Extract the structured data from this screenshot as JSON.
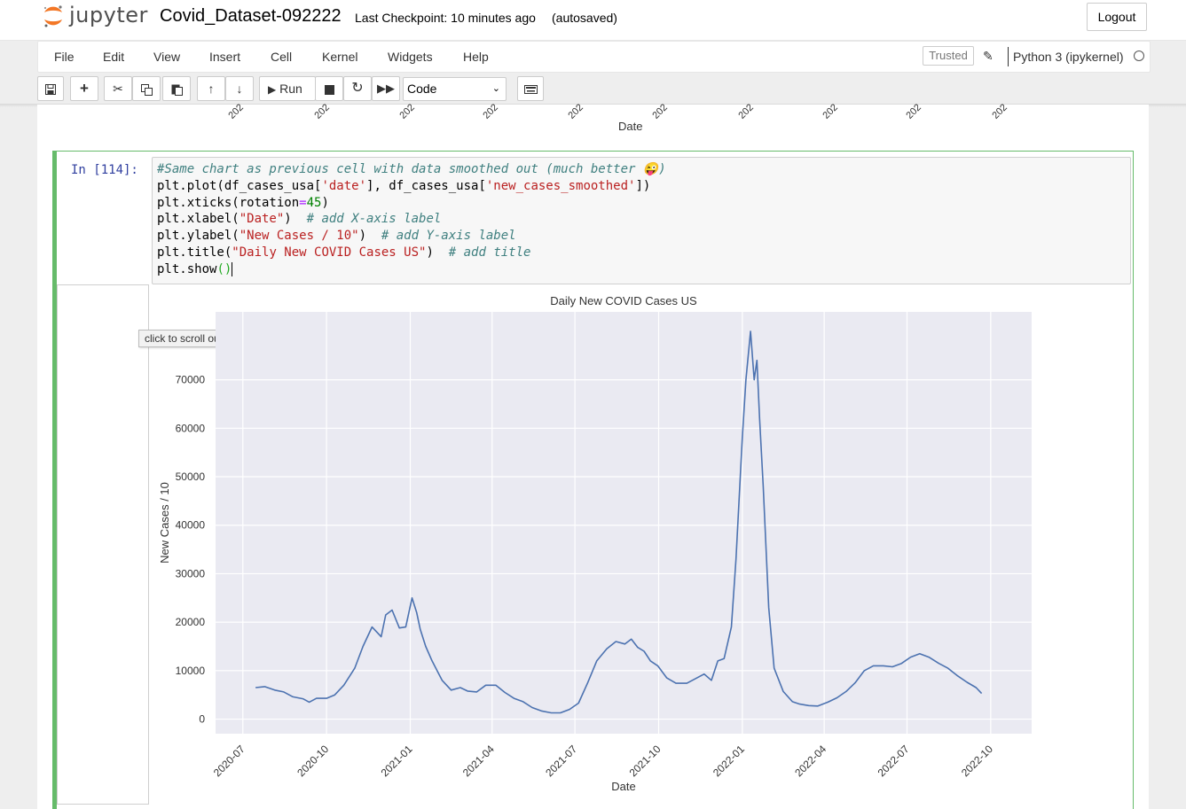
{
  "header": {
    "logo_text": "jupyter",
    "notebook_name": "Covid_Dataset-092222",
    "checkpoint": "Last Checkpoint: 10 minutes ago",
    "autosave": "(autosaved)",
    "logout_label": "Logout"
  },
  "menu": {
    "items": [
      "File",
      "Edit",
      "View",
      "Insert",
      "Cell",
      "Kernel",
      "Widgets",
      "Help"
    ],
    "trusted_label": "Trusted",
    "kernel_name": "Python 3 (ipykernel)"
  },
  "toolbar": {
    "run_label": "Run",
    "cell_type": "Code"
  },
  "previous_output": {
    "tick_label": "202",
    "xlabel": "Date"
  },
  "cell": {
    "prompt": "In [114]:",
    "code_lines": [
      "#Same chart as previous cell with data smoothed out (much better 😜)",
      "plt.plot(df_cases_usa['date'], df_cases_usa['new_cases_smoothed'])",
      "plt.xticks(rotation=45)",
      "plt.xlabel(\"Date\")  # add X-axis label",
      "plt.ylabel(\"New Cases / 10\")  # add Y-axis label",
      "plt.title(\"Daily New COVID Cases US\")  # add title",
      "plt.show()"
    ]
  },
  "tooltip": "click to scroll output; double click to hide",
  "chart_data": {
    "type": "line",
    "title": "Daily New COVID Cases US",
    "xlabel": "Date",
    "ylabel": "New Cases / 10",
    "ylim": [
      -3000,
      84000
    ],
    "xlim": [
      "2020-06-01",
      "2022-11-15"
    ],
    "y_ticks": [
      0,
      10000,
      20000,
      30000,
      40000,
      50000,
      60000,
      70000
    ],
    "y_tick_labels": [
      "0",
      "10000",
      "20000",
      "30000",
      "40000",
      "50000",
      "60000",
      "70000"
    ],
    "x_ticks": [
      "2020-07",
      "2020-10",
      "2021-01",
      "2021-04",
      "2021-07",
      "2021-10",
      "2022-01",
      "2022-04",
      "2022-07",
      "2022-10"
    ],
    "grid": true,
    "background": "#eaeaf2",
    "line_color": "#4c72b0",
    "series": [
      {
        "x": [
          "2020-07-15",
          "2020-07-25",
          "2020-08-05",
          "2020-08-15",
          "2020-08-25",
          "2020-09-05",
          "2020-09-12",
          "2020-09-20",
          "2020-10-01",
          "2020-10-10",
          "2020-10-20",
          "2020-11-01",
          "2020-11-10",
          "2020-11-20",
          "2020-11-30",
          "2020-12-05",
          "2020-12-12",
          "2020-12-20",
          "2020-12-27",
          "2021-01-03",
          "2021-01-08",
          "2021-01-12",
          "2021-01-18",
          "2021-01-25",
          "2021-02-05",
          "2021-02-15",
          "2021-02-25",
          "2021-03-05",
          "2021-03-15",
          "2021-03-25",
          "2021-04-05",
          "2021-04-15",
          "2021-04-25",
          "2021-05-05",
          "2021-05-15",
          "2021-05-25",
          "2021-06-05",
          "2021-06-15",
          "2021-06-25",
          "2021-07-05",
          "2021-07-15",
          "2021-07-25",
          "2021-08-05",
          "2021-08-15",
          "2021-08-25",
          "2021-09-01",
          "2021-09-08",
          "2021-09-15",
          "2021-09-22",
          "2021-09-30",
          "2021-10-10",
          "2021-10-20",
          "2021-11-01",
          "2021-11-10",
          "2021-11-20",
          "2021-11-28",
          "2021-12-05",
          "2021-12-12",
          "2021-12-20",
          "2021-12-25",
          "2022-01-01",
          "2022-01-05",
          "2022-01-10",
          "2022-01-14",
          "2022-01-17",
          "2022-01-20",
          "2022-01-24",
          "2022-01-30",
          "2022-02-05",
          "2022-02-15",
          "2022-02-25",
          "2022-03-05",
          "2022-03-15",
          "2022-03-25",
          "2022-04-05",
          "2022-04-15",
          "2022-04-25",
          "2022-05-05",
          "2022-05-15",
          "2022-05-25",
          "2022-06-05",
          "2022-06-15",
          "2022-06-25",
          "2022-07-05",
          "2022-07-15",
          "2022-07-25",
          "2022-08-05",
          "2022-08-15",
          "2022-08-25",
          "2022-09-05",
          "2022-09-15",
          "2022-09-21"
        ],
        "y": [
          6500,
          6700,
          6000,
          5600,
          4600,
          4200,
          3500,
          4300,
          4300,
          5000,
          7000,
          10500,
          15000,
          19000,
          17000,
          21500,
          22500,
          18800,
          19000,
          25000,
          22000,
          18500,
          15000,
          12000,
          8000,
          6000,
          6500,
          5800,
          5600,
          7000,
          7000,
          5500,
          4300,
          3600,
          2400,
          1700,
          1300,
          1300,
          2000,
          3300,
          7500,
          12000,
          14500,
          16000,
          15500,
          16500,
          14800,
          14000,
          12000,
          11000,
          8500,
          7400,
          7400,
          8300,
          9300,
          8000,
          12000,
          12500,
          19000,
          33000,
          58000,
          70000,
          80000,
          70000,
          74000,
          62000,
          48000,
          23000,
          10500,
          5700,
          3600,
          3100,
          2800,
          2700,
          3500,
          4400,
          5700,
          7500,
          10000,
          11000,
          11000,
          10800,
          11500,
          12800,
          13500,
          12800,
          11500,
          10500,
          9000,
          7600,
          6500,
          5300
        ]
      }
    ]
  }
}
